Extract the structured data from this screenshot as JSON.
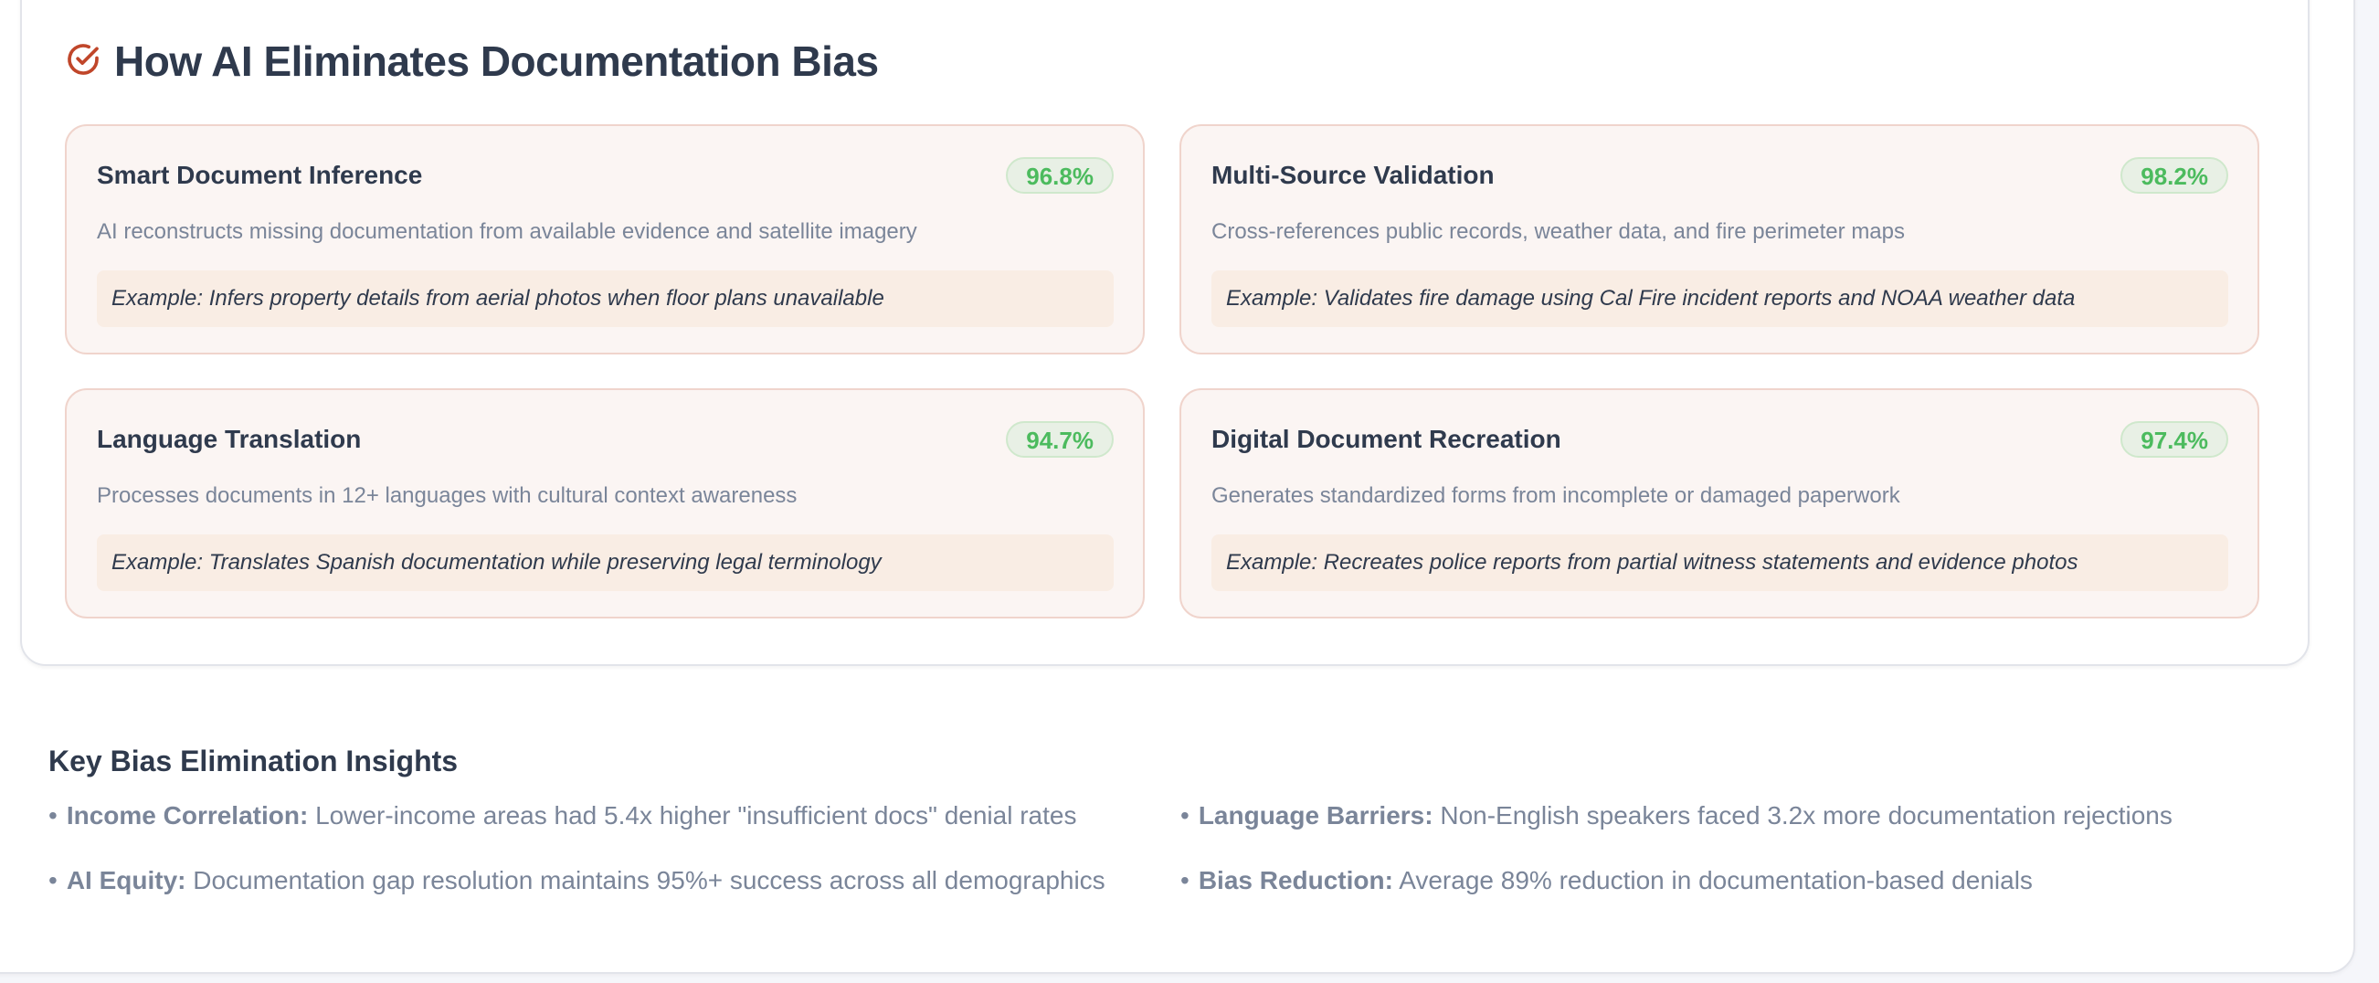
{
  "section": {
    "title": "How AI Eliminates Documentation Bias",
    "icon": "check-circle-icon",
    "accent": "#c0462a"
  },
  "cards": [
    {
      "title": "Smart Document Inference",
      "score": "96.8%",
      "description": "AI reconstructs missing documentation from available evidence and satellite imagery",
      "example": "Example: Infers property details from aerial photos when floor plans unavailable"
    },
    {
      "title": "Multi-Source Validation",
      "score": "98.2%",
      "description": "Cross-references public records, weather data, and fire perimeter maps",
      "example": "Example: Validates fire damage using Cal Fire incident reports and NOAA weather data"
    },
    {
      "title": "Language Translation",
      "score": "94.7%",
      "description": "Processes documents in 12+ languages with cultural context awareness",
      "example": "Example: Translates Spanish documentation while preserving legal terminology"
    },
    {
      "title": "Digital Document Recreation",
      "score": "97.4%",
      "description": "Generates standardized forms from incomplete or damaged paperwork",
      "example": "Example: Recreates police reports from partial witness statements and evidence photos"
    }
  ],
  "insights": {
    "title": "Key Bias Elimination Insights",
    "bullet": "•",
    "items": [
      {
        "label": "Income Correlation:",
        "text": " Lower-income areas had 5.4x higher \"insufficient docs\" denial rates"
      },
      {
        "label": "Language Barriers:",
        "text": " Non-English speakers faced 3.2x more documentation rejections"
      },
      {
        "label": "AI Equity:",
        "text": " Documentation gap resolution maintains 95%+ success across all demographics"
      },
      {
        "label": "Bias Reduction:",
        "text": " Average 89% reduction in documentation-based denials"
      }
    ]
  },
  "colors": {
    "score_green": "#4cbb5e",
    "card_bg": "#fbf5f3",
    "card_border": "#f0d4cc",
    "example_bg": "#f9ede4"
  }
}
